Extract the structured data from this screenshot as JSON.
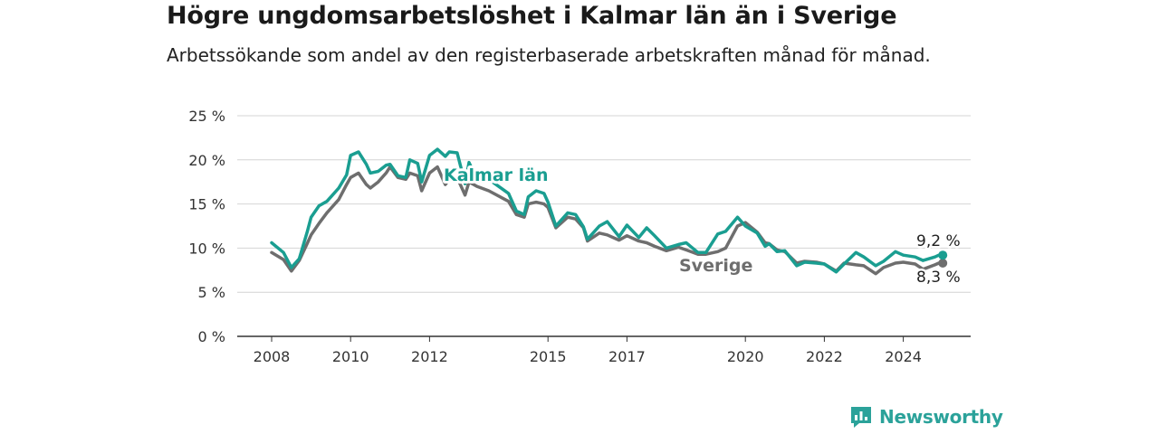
{
  "header": {
    "title": "Högre ungdomsarbetslöshet i Kalmar län än i Sverige",
    "subtitle": "Arbetssökande som andel av den registerbaserade arbetskraften månad för månad."
  },
  "brand": {
    "name": "Newsworthy",
    "icon": "bar-chart-speech-bubble-icon",
    "color": "#2ba29a"
  },
  "chart_data": {
    "type": "line",
    "title": "",
    "xlabel": "",
    "ylabel": "",
    "xlim": [
      2008.0,
      2025.2
    ],
    "ylim": [
      0,
      25
    ],
    "grid": true,
    "y_ticks": [
      0,
      5,
      10,
      15,
      20,
      25
    ],
    "y_tick_labels": [
      "0 %",
      "5 %",
      "10 %",
      "15 %",
      "20 %",
      "25 %"
    ],
    "x_ticks": [
      2008,
      2010,
      2012,
      2015,
      2017,
      2020,
      2022,
      2024
    ],
    "x_tick_labels": [
      "2008",
      "2010",
      "2012",
      "2015",
      "2017",
      "2020",
      "2022",
      "2024"
    ],
    "series": [
      {
        "name": "Kalmar län",
        "color": "#1a9e91",
        "end_label": "9,2 %",
        "x": [
          2008.0,
          2008.3,
          2008.5,
          2008.7,
          2008.9,
          2009.0,
          2009.2,
          2009.4,
          2009.5,
          2009.7,
          2009.9,
          2010.0,
          2010.2,
          2010.4,
          2010.5,
          2010.7,
          2010.9,
          2011.0,
          2011.2,
          2011.4,
          2011.5,
          2011.7,
          2011.8,
          2012.0,
          2012.2,
          2012.4,
          2012.5,
          2012.7,
          2012.9,
          2013.0,
          2013.2,
          2013.5,
          2014.0,
          2014.2,
          2014.4,
          2014.5,
          2014.7,
          2014.9,
          2015.0,
          2015.2,
          2015.5,
          2015.7,
          2015.9,
          2016.0,
          2016.3,
          2016.5,
          2016.8,
          2017.0,
          2017.3,
          2017.5,
          2017.7,
          2018.0,
          2018.3,
          2018.5,
          2018.8,
          2019.0,
          2019.3,
          2019.5,
          2019.8,
          2020.0,
          2020.3,
          2020.5,
          2020.6,
          2020.8,
          2021.0,
          2021.3,
          2021.5,
          2021.8,
          2022.0,
          2022.3,
          2022.5,
          2022.8,
          2023.0,
          2023.3,
          2023.5,
          2023.8,
          2024.0,
          2024.3,
          2024.5,
          2024.8,
          2024.9,
          2025.0
        ],
        "y": [
          10.6,
          9.5,
          7.8,
          8.8,
          11.8,
          13.5,
          14.8,
          15.3,
          15.8,
          16.8,
          18.3,
          20.5,
          20.9,
          19.5,
          18.5,
          18.7,
          19.4,
          19.5,
          18.2,
          18.0,
          20.0,
          19.6,
          17.5,
          20.5,
          21.2,
          20.4,
          20.9,
          20.8,
          17.3,
          19.7,
          17.8,
          17.8,
          16.2,
          14.2,
          13.8,
          15.8,
          16.5,
          16.2,
          15.2,
          12.5,
          14.0,
          13.8,
          12.4,
          11.0,
          12.5,
          13.0,
          11.3,
          12.6,
          11.2,
          12.3,
          11.4,
          10.0,
          10.4,
          10.6,
          9.5,
          9.5,
          11.6,
          11.9,
          13.5,
          12.5,
          11.7,
          10.2,
          10.5,
          9.6,
          9.7,
          8.0,
          8.4,
          8.3,
          8.2,
          7.3,
          8.2,
          9.5,
          9.0,
          8.0,
          8.5,
          9.6,
          9.2,
          9.0,
          8.6,
          9.0,
          9.2,
          9.2
        ]
      },
      {
        "name": "Sverige",
        "color": "#6e6e6e",
        "end_label": "8,3 %",
        "x": [
          2008.0,
          2008.3,
          2008.5,
          2008.7,
          2008.9,
          2009.0,
          2009.2,
          2009.4,
          2009.5,
          2009.7,
          2009.9,
          2010.0,
          2010.2,
          2010.4,
          2010.5,
          2010.7,
          2010.9,
          2011.0,
          2011.2,
          2011.4,
          2011.5,
          2011.7,
          2011.8,
          2012.0,
          2012.2,
          2012.4,
          2012.5,
          2012.7,
          2012.9,
          2013.0,
          2013.2,
          2013.5,
          2014.0,
          2014.2,
          2014.4,
          2014.5,
          2014.7,
          2014.9,
          2015.0,
          2015.2,
          2015.5,
          2015.7,
          2015.9,
          2016.0,
          2016.3,
          2016.5,
          2016.8,
          2017.0,
          2017.3,
          2017.5,
          2017.7,
          2018.0,
          2018.3,
          2018.5,
          2018.8,
          2019.0,
          2019.3,
          2019.5,
          2019.8,
          2020.0,
          2020.3,
          2020.5,
          2020.6,
          2020.8,
          2021.0,
          2021.3,
          2021.5,
          2021.8,
          2022.0,
          2022.3,
          2022.5,
          2022.8,
          2023.0,
          2023.3,
          2023.5,
          2023.8,
          2024.0,
          2024.3,
          2024.5,
          2024.8,
          2024.9,
          2025.0
        ],
        "y": [
          9.5,
          8.7,
          7.4,
          8.6,
          10.5,
          11.5,
          12.8,
          14.0,
          14.5,
          15.5,
          17.2,
          18.0,
          18.5,
          17.2,
          16.8,
          17.5,
          18.5,
          19.2,
          18.0,
          17.8,
          18.5,
          18.2,
          16.5,
          18.5,
          19.2,
          17.2,
          17.8,
          18.0,
          16.0,
          17.5,
          17.0,
          16.5,
          15.3,
          13.8,
          13.5,
          15.0,
          15.2,
          15.0,
          14.6,
          12.3,
          13.5,
          13.3,
          12.3,
          10.8,
          11.7,
          11.5,
          10.9,
          11.4,
          10.8,
          10.6,
          10.2,
          9.7,
          10.1,
          9.8,
          9.3,
          9.3,
          9.6,
          10.0,
          12.5,
          12.9,
          11.8,
          10.6,
          10.5,
          9.8,
          9.6,
          8.3,
          8.5,
          8.4,
          8.2,
          7.4,
          8.3,
          8.1,
          8.0,
          7.1,
          7.8,
          8.3,
          8.4,
          8.2,
          7.6,
          8.1,
          8.3,
          8.3
        ]
      }
    ],
    "annotations": [
      {
        "text": "Kalmar län",
        "series": "Kalmar län"
      },
      {
        "text": "Sverige",
        "series": "Sverige"
      }
    ]
  }
}
